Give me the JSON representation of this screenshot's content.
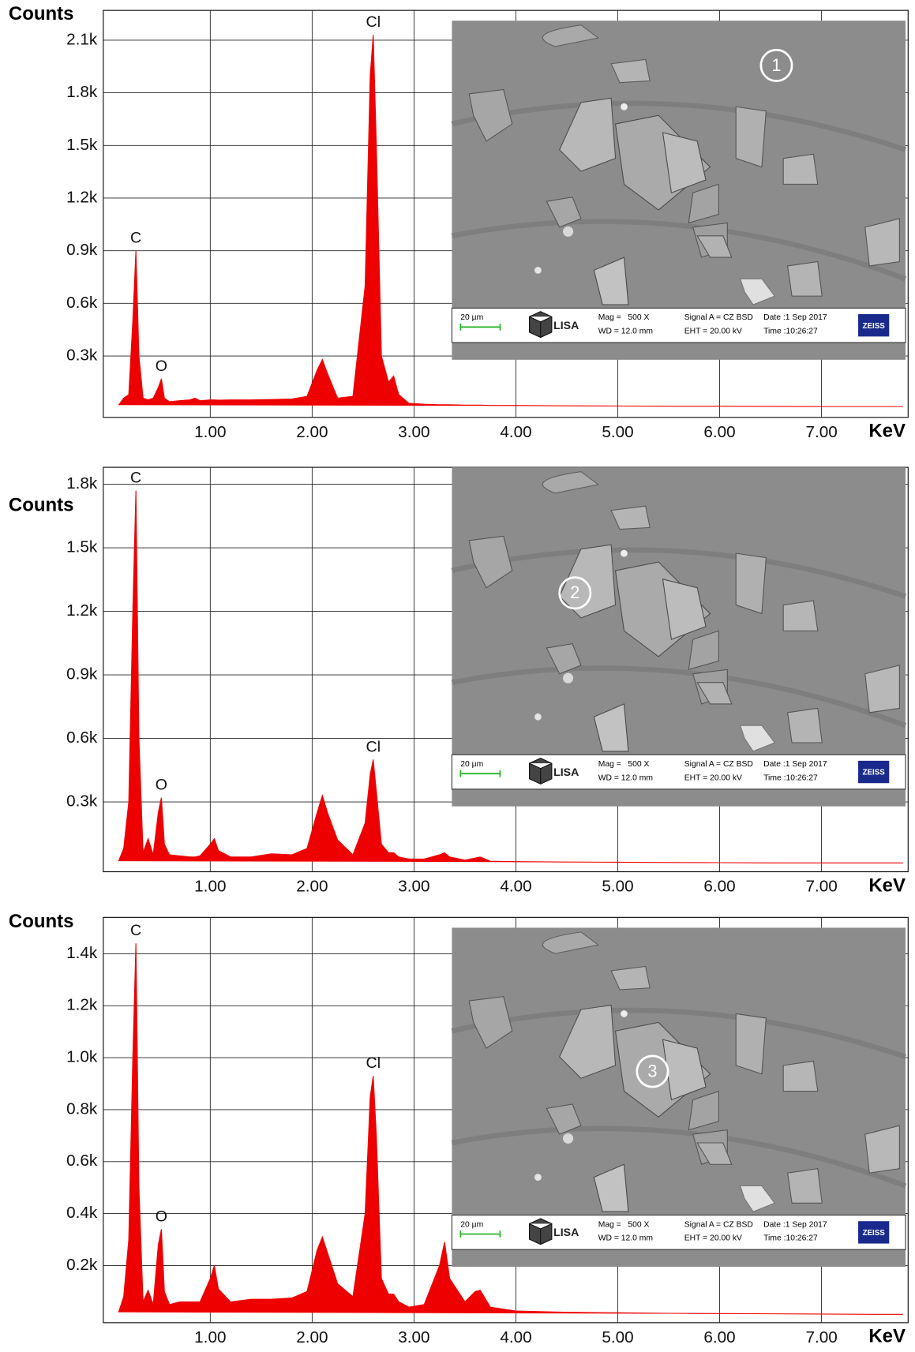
{
  "chart_data": [
    {
      "type": "area",
      "y_label": "Counts",
      "x_label": "KeV",
      "color": "#ee0000",
      "grid": true,
      "xlim": [
        -0.05,
        7.85
      ],
      "ylim": [
        -50,
        2270
      ],
      "xticks": [
        {
          "value": 1,
          "label": "1.00"
        },
        {
          "value": 2,
          "label": "2.00"
        },
        {
          "value": 3,
          "label": "3.00"
        },
        {
          "value": 4,
          "label": "4.00"
        },
        {
          "value": 5,
          "label": "5.00"
        },
        {
          "value": 6,
          "label": "6.00"
        },
        {
          "value": 7,
          "label": "7.00"
        }
      ],
      "yticks": [
        {
          "value": 300,
          "label": "0.3k"
        },
        {
          "value": 600,
          "label": "0.6k"
        },
        {
          "value": 900,
          "label": "0.9k"
        },
        {
          "value": 1200,
          "label": "1.2k"
        },
        {
          "value": 1500,
          "label": "1.5k"
        },
        {
          "value": 1800,
          "label": "1.8k"
        },
        {
          "value": 2100,
          "label": "2.1k"
        }
      ],
      "x": [
        0.1,
        0.15,
        0.2,
        0.24,
        0.27,
        0.3,
        0.34,
        0.39,
        0.44,
        0.49,
        0.52,
        0.55,
        0.6,
        0.7,
        0.8,
        0.85,
        0.9,
        1.0,
        1.04,
        1.08,
        1.2,
        1.4,
        1.6,
        1.8,
        1.95,
        2.05,
        2.1,
        2.15,
        2.25,
        2.4,
        2.52,
        2.57,
        2.6,
        2.63,
        2.68,
        2.75,
        2.8,
        2.85,
        2.95,
        3.1,
        3.25,
        3.3,
        3.35,
        3.5,
        3.6,
        3.65,
        3.75,
        4.0,
        4.5,
        5.0,
        5.5,
        6.0,
        6.5,
        7.0,
        7.5,
        7.8
      ],
      "values": [
        20,
        60,
        80,
        500,
        900,
        300,
        60,
        50,
        60,
        120,
        170,
        60,
        40,
        45,
        50,
        60,
        45,
        50,
        50,
        48,
        50,
        50,
        52,
        55,
        70,
        220,
        280,
        200,
        60,
        70,
        700,
        1900,
        2130,
        1500,
        300,
        150,
        186,
        80,
        30,
        25,
        22,
        22,
        22,
        20,
        20,
        20,
        18,
        18,
        16,
        15,
        14,
        14,
        13,
        12,
        12,
        12
      ],
      "annotations": [
        {
          "text": "C",
          "x": 0.27,
          "y": 900
        },
        {
          "text": "O",
          "x": 0.52,
          "y": 170
        },
        {
          "text": "Cl",
          "x": 2.6,
          "y": 2130
        }
      ],
      "inset": {
        "marker": "1",
        "scale_bar": "20 µm",
        "logo": "LISA",
        "mag": "Mag =   500 X",
        "wd": "WD = 12.0 mm",
        "signal": "Signal A = CZ BSD",
        "eht": "EHT = 20.00 kV",
        "date": "Date :1 Sep 2017",
        "time": "Time :10:26:27",
        "brand": "ZEISS"
      }
    },
    {
      "type": "area",
      "y_label": "Counts",
      "x_label": "KeV",
      "color": "#ee0000",
      "grid": true,
      "xlim": [
        -0.05,
        7.85
      ],
      "ylim": [
        -30,
        1880
      ],
      "xticks": [
        {
          "value": 1,
          "label": "1.00"
        },
        {
          "value": 2,
          "label": "2.00"
        },
        {
          "value": 3,
          "label": "3.00"
        },
        {
          "value": 4,
          "label": "4.00"
        },
        {
          "value": 5,
          "label": "5.00"
        },
        {
          "value": 6,
          "label": "6.00"
        },
        {
          "value": 7,
          "label": "7.00"
        }
      ],
      "yticks": [
        {
          "value": 300,
          "label": "0.3k"
        },
        {
          "value": 600,
          "label": "0.6k"
        },
        {
          "value": 900,
          "label": "0.9k"
        },
        {
          "value": 1200,
          "label": "1.2k"
        },
        {
          "value": 1500,
          "label": "1.5k"
        },
        {
          "value": 1800,
          "label": "1.8k"
        }
      ],
      "x": [
        0.1,
        0.15,
        0.2,
        0.24,
        0.27,
        0.3,
        0.34,
        0.39,
        0.44,
        0.49,
        0.52,
        0.55,
        0.6,
        0.7,
        0.8,
        0.85,
        0.9,
        1.0,
        1.04,
        1.08,
        1.2,
        1.4,
        1.6,
        1.8,
        1.95,
        2.05,
        2.1,
        2.15,
        2.25,
        2.4,
        2.52,
        2.57,
        2.6,
        2.63,
        2.68,
        2.75,
        2.8,
        2.85,
        2.95,
        3.1,
        3.25,
        3.3,
        3.35,
        3.5,
        3.6,
        3.65,
        3.75,
        4.0,
        4.5,
        5.0,
        5.5,
        6.0,
        6.5,
        7.0,
        7.5,
        7.8
      ],
      "values": [
        20,
        80,
        300,
        1200,
        1770,
        600,
        60,
        126,
        50,
        250,
        320,
        100,
        50,
        45,
        40,
        40,
        45,
        100,
        126,
        70,
        40,
        40,
        55,
        50,
        80,
        250,
        330,
        250,
        120,
        50,
        200,
        430,
        500,
        350,
        100,
        60,
        60,
        40,
        30,
        30,
        50,
        60,
        40,
        25,
        35,
        40,
        20,
        18,
        16,
        15,
        14,
        13,
        12,
        12,
        12,
        12
      ],
      "annotations": [
        {
          "text": "C",
          "x": 0.27,
          "y": 1770
        },
        {
          "text": "O",
          "x": 0.52,
          "y": 320
        },
        {
          "text": "Cl",
          "x": 2.6,
          "y": 500
        }
      ],
      "inset": {
        "marker": "2",
        "scale_bar": "20 µm",
        "logo": "LISA",
        "mag": "Mag =   500 X",
        "wd": "WD = 12.0 mm",
        "signal": "Signal A = CZ BSD",
        "eht": "EHT = 20.00 kV",
        "date": "Date :1 Sep 2017",
        "time": "Time :10:26:27",
        "brand": "ZEISS"
      }
    },
    {
      "type": "area",
      "y_label": "Counts",
      "x_label": "KeV",
      "color": "#ee0000",
      "grid": true,
      "xlim": [
        -0.05,
        7.85
      ],
      "ylim": [
        -20,
        1540
      ],
      "xticks": [
        {
          "value": 1,
          "label": "1.00"
        },
        {
          "value": 2,
          "label": "2.00"
        },
        {
          "value": 3,
          "label": "3.00"
        },
        {
          "value": 4,
          "label": "4.00"
        },
        {
          "value": 5,
          "label": "5.00"
        },
        {
          "value": 6,
          "label": "6.00"
        },
        {
          "value": 7,
          "label": "7.00"
        }
      ],
      "yticks": [
        {
          "value": 200,
          "label": "0.2k"
        },
        {
          "value": 400,
          "label": "0.4k"
        },
        {
          "value": 600,
          "label": "0.6k"
        },
        {
          "value": 800,
          "label": "0.8k"
        },
        {
          "value": 1000,
          "label": "1.0k"
        },
        {
          "value": 1200,
          "label": "1.2k"
        },
        {
          "value": 1400,
          "label": "1.4k"
        }
      ],
      "x": [
        0.1,
        0.15,
        0.2,
        0.24,
        0.27,
        0.3,
        0.34,
        0.39,
        0.44,
        0.49,
        0.52,
        0.55,
        0.6,
        0.7,
        0.8,
        0.85,
        0.9,
        1.0,
        1.04,
        1.08,
        1.2,
        1.4,
        1.6,
        1.8,
        1.95,
        2.05,
        2.1,
        2.15,
        2.25,
        2.4,
        2.52,
        2.57,
        2.6,
        2.63,
        2.68,
        2.75,
        2.8,
        2.85,
        2.95,
        3.1,
        3.25,
        3.3,
        3.35,
        3.5,
        3.6,
        3.65,
        3.75,
        4.0,
        4.5,
        5.0,
        5.5,
        6.0,
        6.5,
        7.0,
        7.5,
        7.8
      ],
      "values": [
        20,
        80,
        300,
        1000,
        1440,
        500,
        60,
        105,
        50,
        280,
        340,
        100,
        50,
        60,
        60,
        60,
        60,
        150,
        200,
        110,
        60,
        70,
        70,
        75,
        100,
        260,
        310,
        250,
        130,
        80,
        400,
        850,
        930,
        700,
        150,
        90,
        90,
        60,
        40,
        50,
        200,
        290,
        150,
        60,
        100,
        105,
        40,
        25,
        20,
        18,
        16,
        15,
        14,
        13,
        12,
        12
      ],
      "annotations": [
        {
          "text": "C",
          "x": 0.27,
          "y": 1440
        },
        {
          "text": "O",
          "x": 0.52,
          "y": 340
        },
        {
          "text": "Cl",
          "x": 2.6,
          "y": 930
        }
      ],
      "inset": {
        "marker": "3",
        "scale_bar": "20 µm",
        "logo": "LISA",
        "mag": "Mag =   500 X",
        "wd": "WD = 12.0 mm",
        "signal": "Signal A = CZ BSD",
        "eht": "EHT = 20.00 kV",
        "date": "Date :1 Sep 2017",
        "time": "Time :10:26:27",
        "brand": "ZEISS"
      }
    }
  ]
}
